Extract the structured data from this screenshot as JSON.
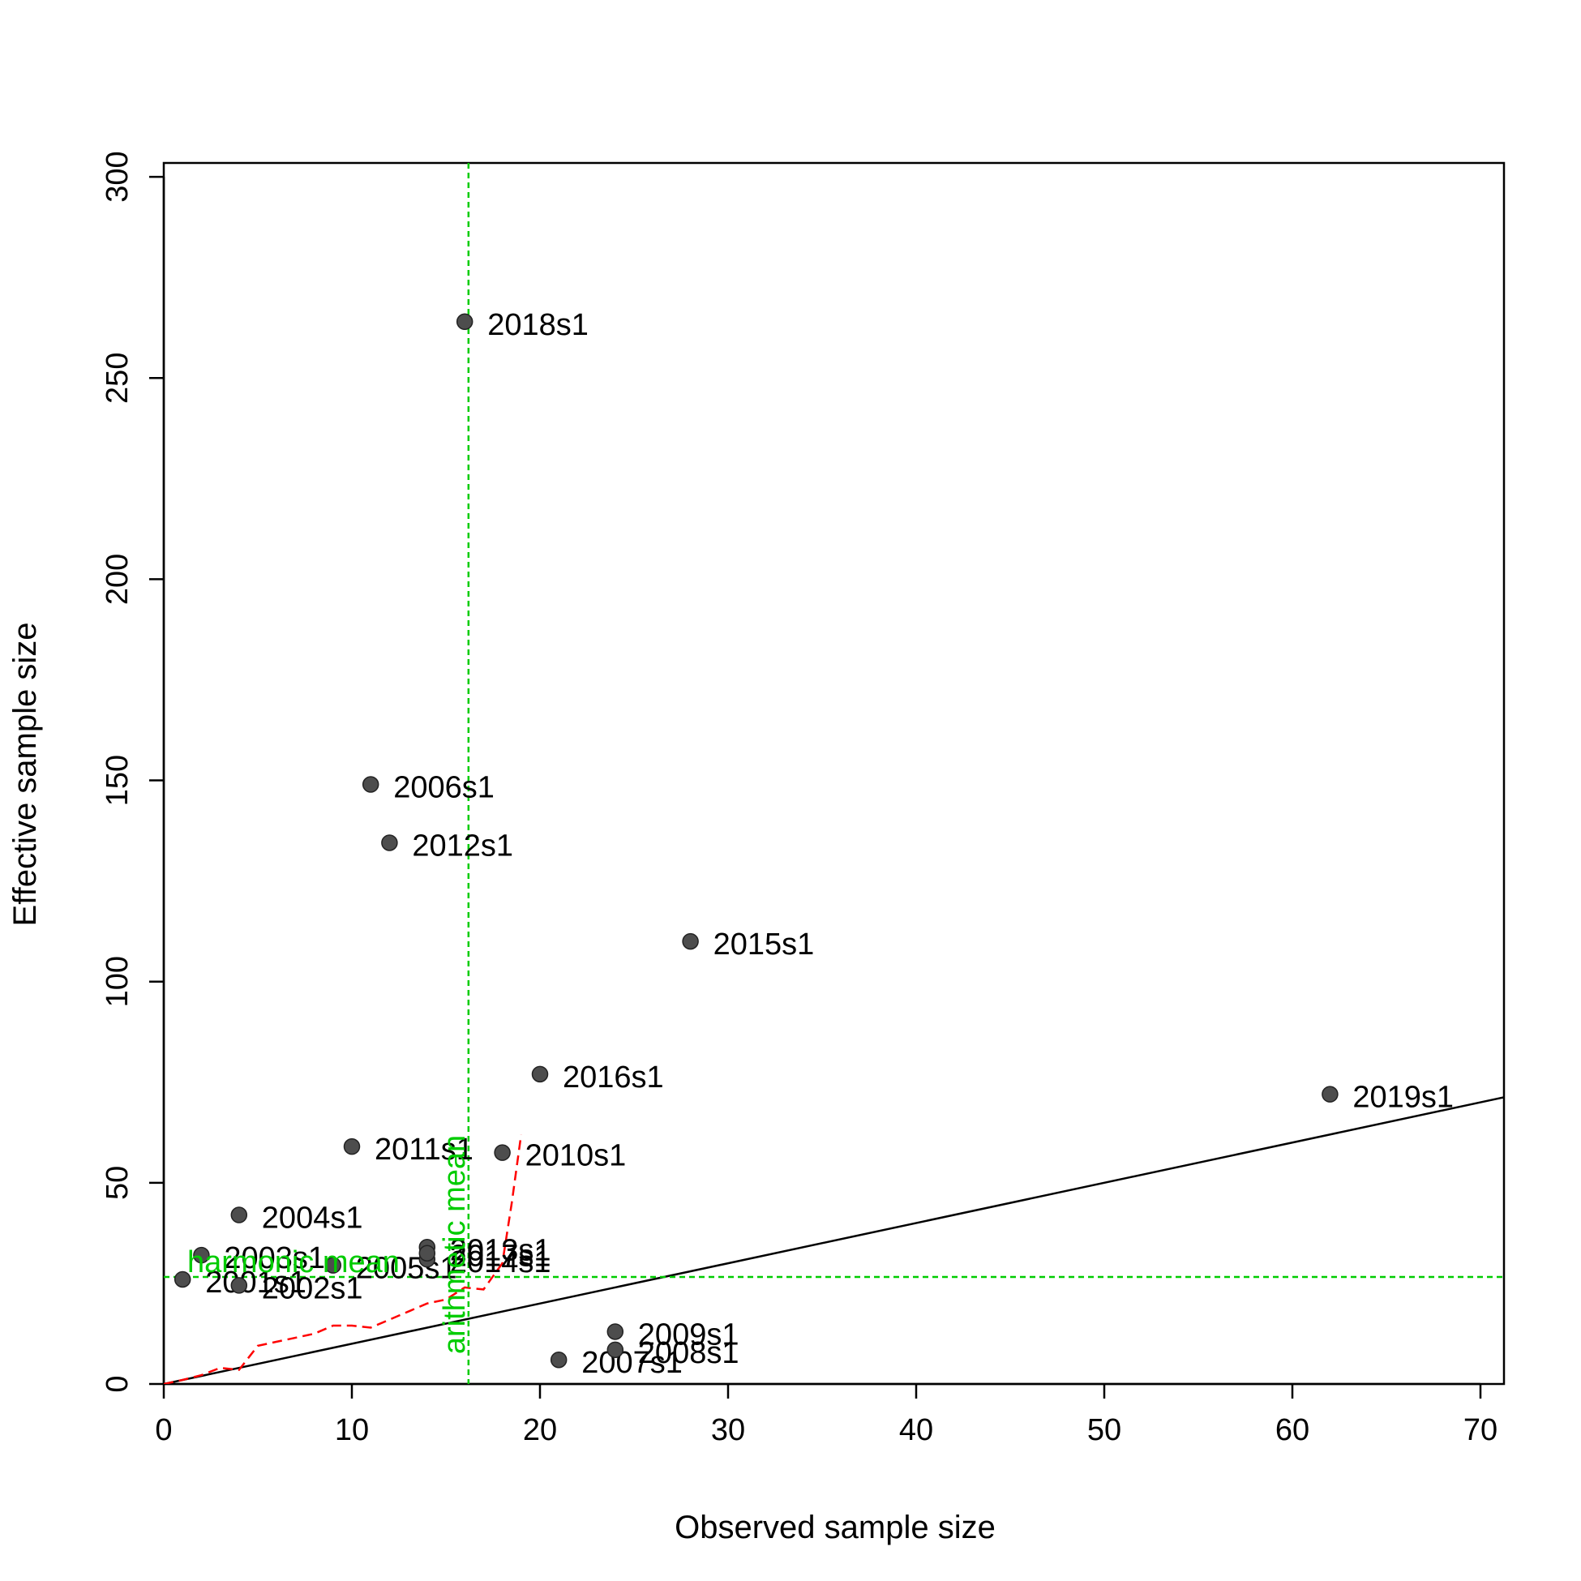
{
  "chart_data": {
    "type": "scatter",
    "title": "",
    "xlabel": "Observed sample size",
    "ylabel": "Effective sample size",
    "xlim": [
      0,
      71.3
    ],
    "ylim": [
      0,
      303.5
    ],
    "xticks": [
      0,
      10,
      20,
      30,
      40,
      50,
      60,
      70
    ],
    "yticks": [
      0,
      50,
      100,
      150,
      200,
      250,
      300
    ],
    "grid": false,
    "colors": {
      "point": "#4d4d4d",
      "point_edge": "#222222",
      "reference": "#00cc00",
      "smoother": "#ff0000",
      "identity": "#000000"
    },
    "points": [
      {
        "label": "2001s1",
        "x": 1,
        "y": 26
      },
      {
        "label": "2002s1",
        "x": 4,
        "y": 24.5
      },
      {
        "label": "2003s1",
        "x": 2,
        "y": 32
      },
      {
        "label": "2004s1",
        "x": 4,
        "y": 42
      },
      {
        "label": "2005s1",
        "x": 9,
        "y": 29.5
      },
      {
        "label": "2006s1",
        "x": 11,
        "y": 149
      },
      {
        "label": "2007s1",
        "x": 21,
        "y": 6
      },
      {
        "label": "2008s1",
        "x": 24,
        "y": 8.5
      },
      {
        "label": "2009s1",
        "x": 24,
        "y": 13
      },
      {
        "label": "2010s1",
        "x": 18,
        "y": 57.5
      },
      {
        "label": "2011s1",
        "x": 10,
        "y": 59
      },
      {
        "label": "2012s1",
        "x": 12,
        "y": 134.5
      },
      {
        "label": "2013s1",
        "x": 14,
        "y": 34
      },
      {
        "label": "2014s1",
        "x": 14,
        "y": 31
      },
      {
        "label": "2015s1",
        "x": 28,
        "y": 110
      },
      {
        "label": "2016s1",
        "x": 20,
        "y": 77
      },
      {
        "label": "2017s1",
        "x": 14,
        "y": 32.5
      },
      {
        "label": "2018s1",
        "x": 16,
        "y": 264
      },
      {
        "label": "2019s1",
        "x": 62,
        "y": 72
      }
    ],
    "identity_line": {
      "x": [
        0,
        71.3
      ],
      "y": [
        0,
        71.3
      ]
    },
    "arithmetic_mean": {
      "label": "arithmetic mean",
      "value": 16.2
    },
    "harmonic_mean": {
      "label": "harmonic mean",
      "value": 26.6
    },
    "smoother": {
      "x": [
        0,
        1,
        2,
        3,
        4,
        5,
        6,
        8,
        9,
        10,
        11,
        12,
        13,
        14,
        15,
        16,
        17,
        18,
        18.5,
        19
      ],
      "y": [
        0,
        1,
        2.2,
        4,
        3.5,
        9.5,
        10.5,
        12.5,
        14.5,
        14.5,
        14,
        16,
        18,
        20,
        21,
        24,
        23.5,
        30,
        45,
        62
      ]
    }
  }
}
